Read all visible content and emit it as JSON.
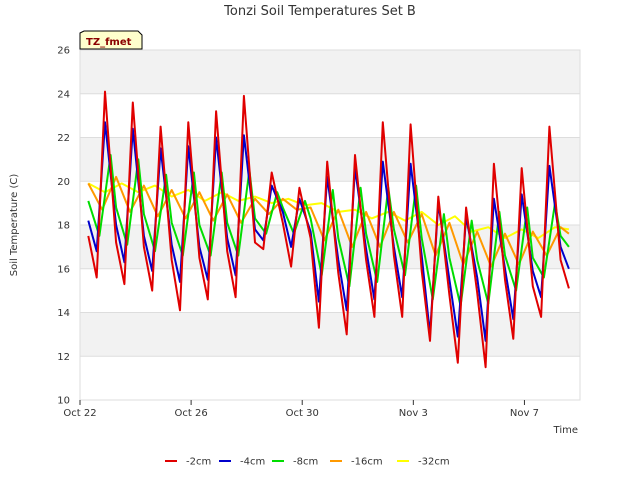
{
  "chart_data": {
    "type": "line",
    "title": "Tonzi Soil Temperatures Set B",
    "xlabel": "Time",
    "ylabel": "Soil Temperature (C)",
    "badge": "TZ_fmet",
    "ylim": [
      10,
      26
    ],
    "yticks": [
      10,
      12,
      14,
      16,
      18,
      20,
      22,
      24,
      26
    ],
    "xlim": [
      "Oct 22",
      "Nov 9"
    ],
    "xticks": [
      "Oct 22",
      "Oct 26",
      "Oct 30",
      "Nov 3",
      "Nov 7"
    ],
    "grid": "horizontal bands",
    "legend_position": "bottom",
    "x_unit": "day index from Oct 22",
    "series": [
      {
        "name": "-2cm",
        "color": "#e00000",
        "x": [
          0.3,
          0.6,
          0.9,
          1.3,
          1.6,
          1.9,
          2.3,
          2.6,
          2.9,
          3.3,
          3.6,
          3.9,
          4.3,
          4.6,
          4.9,
          5.3,
          5.6,
          5.9,
          6.3,
          6.6,
          6.9,
          7.3,
          7.6,
          7.9,
          8.3,
          8.6,
          8.9,
          9.3,
          9.6,
          9.9,
          10.3,
          10.6,
          10.9,
          11.3,
          11.6,
          11.9,
          12.3,
          12.6,
          12.9,
          13.3,
          13.6,
          13.9,
          14.3,
          14.6,
          14.9,
          15.3,
          15.6,
          15.9,
          16.3,
          16.6,
          16.9,
          17.3,
          17.6
        ],
        "y": [
          17.5,
          15.6,
          24.1,
          17.2,
          15.3,
          23.6,
          17.0,
          15.0,
          22.5,
          16.4,
          14.1,
          22.7,
          16.5,
          14.6,
          23.2,
          16.8,
          14.7,
          23.9,
          17.2,
          16.9,
          20.4,
          18.1,
          16.1,
          19.7,
          17.4,
          13.3,
          20.9,
          15.8,
          13.0,
          21.2,
          16.4,
          13.8,
          22.7,
          16.6,
          13.8,
          22.6,
          15.9,
          12.7,
          19.3,
          14.8,
          11.7,
          18.8,
          14.9,
          11.5,
          20.8,
          15.5,
          12.8,
          20.6,
          15.2,
          13.8,
          22.5,
          16.4,
          15.1
        ]
      },
      {
        "name": "-4cm",
        "color": "#0000cc",
        "x": [
          0.3,
          0.6,
          0.9,
          1.3,
          1.6,
          1.9,
          2.3,
          2.6,
          2.9,
          3.3,
          3.6,
          3.9,
          4.3,
          4.6,
          4.9,
          5.3,
          5.6,
          5.9,
          6.3,
          6.6,
          6.9,
          7.3,
          7.6,
          7.9,
          8.3,
          8.6,
          8.9,
          9.3,
          9.6,
          9.9,
          10.3,
          10.6,
          10.9,
          11.3,
          11.6,
          11.9,
          12.3,
          12.6,
          12.9,
          13.3,
          13.6,
          13.9,
          14.3,
          14.6,
          14.9,
          15.3,
          15.6,
          15.9,
          16.3,
          16.6,
          16.9,
          17.3,
          17.6
        ],
        "y": [
          18.2,
          16.8,
          22.7,
          18.0,
          16.3,
          22.4,
          17.5,
          15.9,
          21.5,
          17.1,
          15.4,
          21.6,
          17.0,
          15.5,
          22.0,
          17.4,
          15.7,
          22.1,
          17.8,
          17.3,
          19.8,
          18.6,
          17.0,
          19.2,
          17.7,
          14.5,
          20.2,
          16.4,
          14.1,
          20.6,
          16.9,
          14.6,
          20.9,
          17.0,
          14.7,
          20.8,
          16.6,
          13.0,
          19.0,
          15.5,
          12.9,
          18.4,
          15.6,
          12.7,
          19.2,
          16.0,
          13.7,
          19.4,
          15.9,
          14.7,
          20.7,
          17.0,
          16.0
        ]
      },
      {
        "name": "-8cm",
        "color": "#00dd00",
        "x": [
          0.3,
          0.7,
          1.1,
          1.3,
          1.7,
          2.1,
          2.3,
          2.7,
          3.1,
          3.3,
          3.7,
          4.1,
          4.3,
          4.7,
          5.1,
          5.3,
          5.7,
          6.1,
          6.3,
          6.7,
          7.1,
          7.3,
          7.7,
          8.1,
          8.3,
          8.7,
          9.1,
          9.3,
          9.7,
          10.1,
          10.3,
          10.7,
          11.1,
          11.3,
          11.7,
          12.1,
          12.3,
          12.7,
          13.1,
          13.3,
          13.7,
          14.1,
          14.3,
          14.7,
          15.1,
          15.3,
          15.7,
          16.1,
          16.3,
          16.7,
          17.1,
          17.3,
          17.6
        ],
        "y": [
          19.1,
          17.5,
          21.2,
          18.8,
          17.1,
          21.0,
          18.5,
          16.8,
          20.3,
          18.1,
          16.6,
          20.4,
          18.0,
          16.6,
          20.4,
          18.1,
          16.6,
          20.5,
          18.3,
          17.6,
          19.5,
          18.8,
          17.6,
          19.1,
          18.3,
          15.7,
          19.6,
          17.4,
          15.2,
          19.7,
          17.6,
          15.4,
          19.7,
          17.8,
          15.7,
          19.8,
          17.4,
          14.6,
          18.5,
          16.5,
          14.3,
          18.2,
          16.4,
          14.4,
          18.6,
          16.6,
          15.0,
          18.8,
          16.5,
          15.6,
          19.0,
          17.5,
          17.0
        ]
      },
      {
        "name": "-16cm",
        "color": "#ff9900",
        "x": [
          0.3,
          0.8,
          1.3,
          1.8,
          2.3,
          2.8,
          3.3,
          3.8,
          4.3,
          4.8,
          5.3,
          5.8,
          6.3,
          6.8,
          7.3,
          7.8,
          8.3,
          8.8,
          9.3,
          9.8,
          10.3,
          10.8,
          11.3,
          11.8,
          12.3,
          12.8,
          13.3,
          13.8,
          14.3,
          14.8,
          15.3,
          15.8,
          16.3,
          16.8,
          17.3,
          17.6
        ],
        "y": [
          19.9,
          18.7,
          20.2,
          18.6,
          19.8,
          18.4,
          19.6,
          18.3,
          19.5,
          18.2,
          19.4,
          18.1,
          19.2,
          18.5,
          19.2,
          18.7,
          18.8,
          17.3,
          18.7,
          17.0,
          18.6,
          17.0,
          18.6,
          17.2,
          18.5,
          16.6,
          18.1,
          16.2,
          17.7,
          16.1,
          17.6,
          16.2,
          17.7,
          16.6,
          17.9,
          17.6
        ]
      },
      {
        "name": "-32cm",
        "color": "#ffff00",
        "x": [
          0.3,
          0.9,
          1.5,
          2.1,
          2.7,
          3.3,
          3.9,
          4.5,
          5.1,
          5.7,
          6.3,
          6.9,
          7.5,
          8.1,
          8.7,
          9.3,
          9.9,
          10.5,
          11.1,
          11.7,
          12.3,
          12.9,
          13.5,
          14.1,
          14.7,
          15.3,
          15.9,
          16.5,
          17.1,
          17.6
        ],
        "y": [
          19.9,
          19.5,
          19.9,
          19.5,
          19.8,
          19.3,
          19.6,
          19.1,
          19.5,
          19.1,
          19.3,
          19.0,
          19.2,
          18.9,
          19.0,
          18.6,
          18.7,
          18.3,
          18.6,
          18.2,
          18.6,
          18.0,
          18.4,
          17.7,
          17.9,
          17.4,
          17.8,
          17.4,
          17.9,
          17.8
        ]
      }
    ]
  }
}
